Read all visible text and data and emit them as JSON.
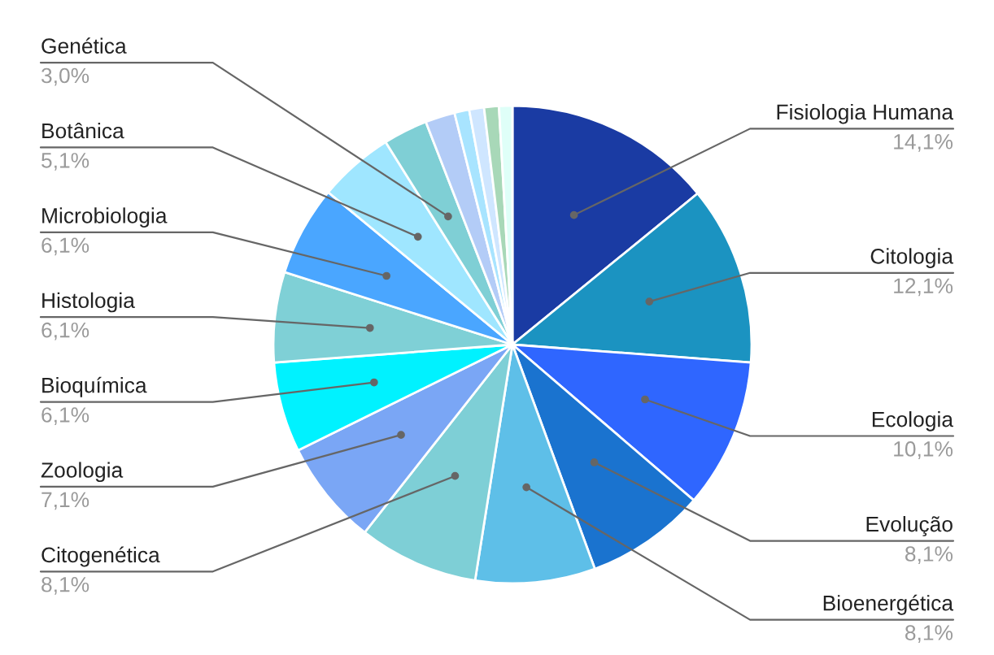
{
  "chart_data": {
    "type": "pie",
    "categories": [
      "Fisiologia Humana",
      "Citologia",
      "Ecologia",
      "Evolução",
      "Bioenergética",
      "Citogenética",
      "Zoologia",
      "Bioquímica",
      "Histologia",
      "Microbiologia",
      "Botânica",
      "Genética",
      null,
      null,
      null,
      null,
      null
    ],
    "values": [
      14.1,
      12.1,
      10.1,
      8.1,
      8.1,
      8.1,
      7.1,
      6.1,
      6.1,
      6.1,
      5.1,
      3.0,
      2.0,
      1.0,
      1.0,
      1.0,
      0.9
    ],
    "value_labels": [
      "14,1%",
      "12,1%",
      "10,1%",
      "8,1%",
      "8,1%",
      "8,1%",
      "7,1%",
      "6,1%",
      "6,1%",
      "6,1%",
      "5,1%",
      "3,0%",
      null,
      null,
      null,
      null,
      null
    ],
    "colors": [
      "#1a3ba3",
      "#1b93c1",
      "#2f66ff",
      "#1a73cf",
      "#5ebfe8",
      "#7ecfd6",
      "#7aa6f5",
      "#00f2ff",
      "#7fd0d6",
      "#4aa6ff",
      "#9fe6ff",
      "#7fcfd5",
      "#b3ccf7",
      "#a8e4ff",
      "#cfe6ff",
      "#a8d8b8",
      "#dffff8"
    ],
    "legend": false
  }
}
